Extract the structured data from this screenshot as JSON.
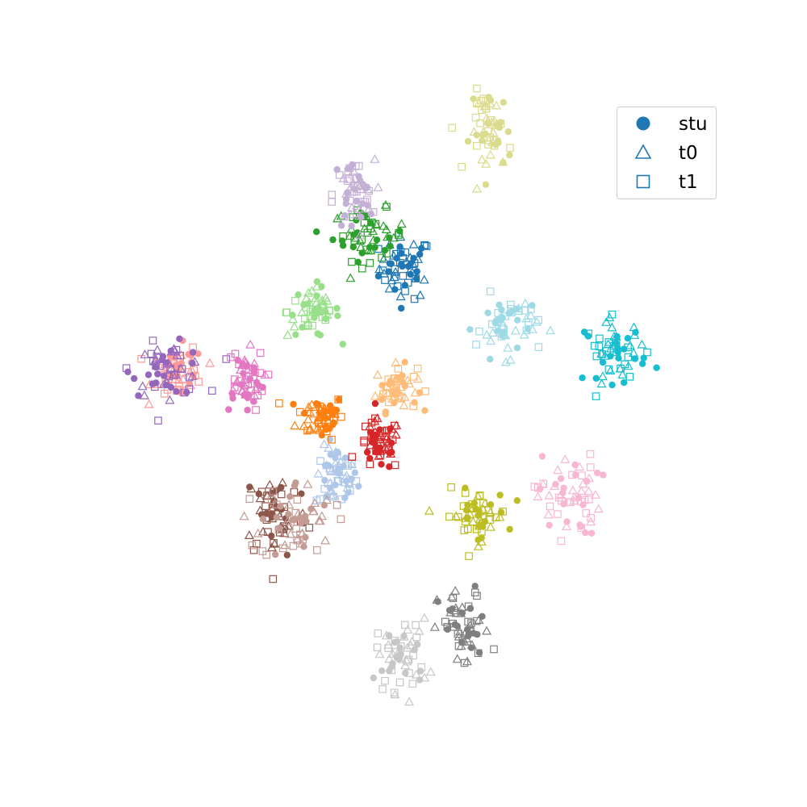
{
  "chart_data": {
    "type": "scatter",
    "axes_visible": false,
    "grid": false,
    "legend_placement": "top-right",
    "x_range": [
      -60,
      60
    ],
    "y_range": [
      -60,
      60
    ],
    "legend": [
      {
        "label": "stu",
        "marker": "circle",
        "filled": true,
        "color": "#1f77b4"
      },
      {
        "label": "t0",
        "marker": "triangle",
        "filled": false,
        "color": "#1f77b4"
      },
      {
        "label": "t1",
        "marker": "square",
        "filled": false,
        "color": "#1f77b4"
      }
    ],
    "palette": [
      "#1f77b4",
      "#aec7e8",
      "#ff7f0e",
      "#ffbb78",
      "#2ca02c",
      "#98df8a",
      "#d62728",
      "#ff9896",
      "#9467bd",
      "#c5b0d5",
      "#8c564b",
      "#c49c94",
      "#e377c2",
      "#f7b6d2",
      "#7f7f7f",
      "#c7c7c7",
      "#bcbd22",
      "#dbdb8d",
      "#17becf",
      "#9edae5"
    ],
    "clusters": [
      {
        "class": 0,
        "center": [
          -1.6,
          26.5
        ],
        "spread": [
          2.5,
          3.0
        ]
      },
      {
        "class": 1,
        "center": [
          -14.8,
          -14.5
        ],
        "spread": [
          2.0,
          3.0
        ]
      },
      {
        "class": 2,
        "center": [
          -17.8,
          -2.5
        ],
        "spread": [
          2.3,
          2.2
        ]
      },
      {
        "class": 3,
        "center": [
          -3.3,
          3.0
        ],
        "spread": [
          2.0,
          2.2
        ]
      },
      {
        "class": 4,
        "center": [
          -8.5,
          33.0
        ],
        "spread": [
          3.5,
          2.5
        ]
      },
      {
        "class": 5,
        "center": [
          -19.2,
          18.0
        ],
        "spread": [
          2.5,
          2.5
        ]
      },
      {
        "class": 6,
        "center": [
          -6.5,
          -8.2
        ],
        "spread": [
          2.0,
          2.5
        ]
      },
      {
        "class": 7,
        "center": [
          -45.1,
          6.2
        ],
        "spread": [
          2.5,
          2.5
        ]
      },
      {
        "class": 8,
        "center": [
          -47.0,
          6.7
        ],
        "spread": [
          3.5,
          2.5
        ]
      },
      {
        "class": 9,
        "center": [
          -11.5,
          40.7
        ],
        "spread": [
          2.0,
          3.5
        ]
      },
      {
        "class": 10,
        "center": [
          -26.4,
          -21.5
        ],
        "spread": [
          3.0,
          4.5
        ]
      },
      {
        "class": 11,
        "center": [
          -22.3,
          -23.0
        ],
        "spread": [
          3.5,
          4.0
        ]
      },
      {
        "class": 12,
        "center": [
          -32.6,
          4.5
        ],
        "spread": [
          2.0,
          3.0
        ]
      },
      {
        "class": 13,
        "center": [
          29.7,
          -18.0
        ],
        "spread": [
          3.0,
          4.0
        ]
      },
      {
        "class": 14,
        "center": [
          9.7,
          -44.3
        ],
        "spread": [
          2.5,
          4.0
        ]
      },
      {
        "class": 15,
        "center": [
          -2.1,
          -49.2
        ],
        "spread": [
          2.5,
          3.5
        ]
      },
      {
        "class": 16,
        "center": [
          12.0,
          -22.0
        ],
        "spread": [
          3.0,
          2.5
        ]
      },
      {
        "class": 17,
        "center": [
          14.9,
          53.3
        ],
        "spread": [
          2.0,
          4.0
        ]
      },
      {
        "class": 18,
        "center": [
          38.8,
          10.2
        ],
        "spread": [
          3.0,
          3.0
        ]
      },
      {
        "class": 19,
        "center": [
          18.0,
          15.2
        ],
        "spread": [
          3.0,
          3.0
        ]
      }
    ]
  }
}
